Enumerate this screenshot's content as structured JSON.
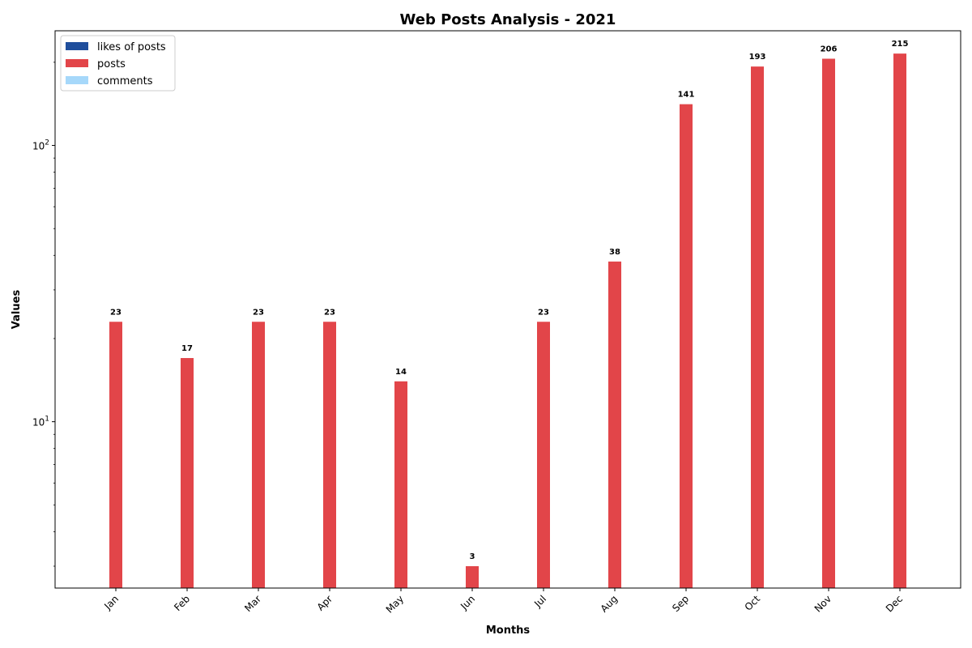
{
  "chart_data": {
    "type": "bar",
    "title": "Web Posts Analysis - 2021",
    "xlabel": "Months",
    "ylabel": "Values",
    "yscale": "log",
    "ylim": [
      2.5,
      260
    ],
    "yticks": [
      {
        "value": 10,
        "base": "10",
        "exp": "1"
      },
      {
        "value": 100,
        "base": "10",
        "exp": "2"
      }
    ],
    "grid": false,
    "legend_position": "top-left",
    "categories": [
      "Jan",
      "Feb",
      "Mar",
      "Apr",
      "May",
      "Jun",
      "Jul",
      "Aug",
      "Sep",
      "Oct",
      "Nov",
      "Dec"
    ],
    "series": [
      {
        "name": "likes of posts",
        "color": "#1f4e9c",
        "values": [
          0,
          0,
          0,
          0,
          0,
          0,
          0,
          0,
          0,
          0,
          0,
          0
        ]
      },
      {
        "name": "posts",
        "color": "#e24549",
        "values": [
          23,
          17,
          23,
          23,
          14,
          3,
          23,
          38,
          141,
          193,
          206,
          215
        ]
      },
      {
        "name": "comments",
        "color": "#a6d8fa",
        "values": [
          0,
          0,
          0,
          0,
          0,
          0,
          0,
          0,
          0,
          0,
          0,
          0
        ]
      }
    ],
    "data_labels": [
      "23",
      "17",
      "23",
      "23",
      "14",
      "3",
      "23",
      "38",
      "141",
      "193",
      "206",
      "215"
    ]
  }
}
